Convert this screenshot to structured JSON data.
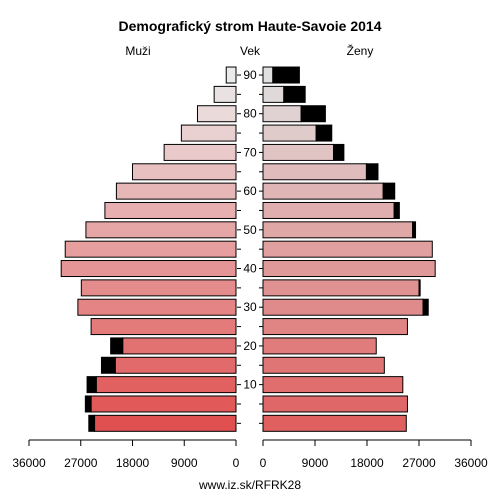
{
  "chart_data": {
    "type": "bar",
    "subtype": "population-pyramid",
    "title": "Demografický strom Haute-Savoie 2014",
    "left_label": "Muži",
    "center_label": "Vek",
    "right_label": "Ženy",
    "source": "www.iz.sk/RFRK28",
    "xlim": [
      0,
      36000
    ],
    "x_ticks": [
      {
        "value": 0,
        "label": "0"
      },
      {
        "value": 9000,
        "label": "9000"
      },
      {
        "value": 18000,
        "label": "18000"
      },
      {
        "value": 27000,
        "label": "27000"
      },
      {
        "value": 36000,
        "label": "36000"
      }
    ],
    "y_ticks": [
      {
        "age": 10,
        "label": "10"
      },
      {
        "age": 20,
        "label": "20"
      },
      {
        "age": 30,
        "label": "30"
      },
      {
        "age": 40,
        "label": "40"
      },
      {
        "age": 50,
        "label": "50"
      },
      {
        "age": 60,
        "label": "60"
      },
      {
        "age": 70,
        "label": "70"
      },
      {
        "age": 80,
        "label": "80"
      },
      {
        "age": 90,
        "label": "90"
      }
    ],
    "age_groups": [
      "0-4",
      "5-9",
      "10-14",
      "15-19",
      "20-24",
      "25-29",
      "30-34",
      "35-39",
      "40-44",
      "45-49",
      "50-54",
      "55-59",
      "60-64",
      "65-69",
      "70-74",
      "75-79",
      "80-84",
      "85-89",
      "90+"
    ],
    "series": [
      {
        "side": "left",
        "male_base": [
          24600,
          25200,
          24300,
          21000,
          19700,
          25200,
          27500,
          26900,
          30400,
          29700,
          26100,
          22800,
          20800,
          18000,
          12500,
          9500,
          6700,
          3800,
          1700
        ],
        "male_excess": [
          1000,
          1000,
          1600,
          2400,
          2100,
          0,
          0,
          0,
          0,
          0,
          0,
          0,
          0,
          0,
          0,
          0,
          0,
          0,
          0
        ]
      },
      {
        "side": "right",
        "female_base": [
          24800,
          25000,
          24200,
          21000,
          19600,
          25000,
          27700,
          27000,
          29800,
          29300,
          25900,
          22700,
          20800,
          17900,
          12200,
          9200,
          6600,
          3600,
          1700
        ],
        "female_excess": [
          0,
          0,
          0,
          0,
          0,
          0,
          900,
          200,
          0,
          0,
          500,
          900,
          2000,
          2000,
          1800,
          2700,
          4200,
          3700,
          4600
        ]
      }
    ],
    "colors": {
      "excess": "#000000",
      "outline": "#000000",
      "male_young": "#e05050",
      "male_old": "#ebebeb",
      "female_young": "#e06060",
      "female_old": "#e0e0e0"
    }
  }
}
